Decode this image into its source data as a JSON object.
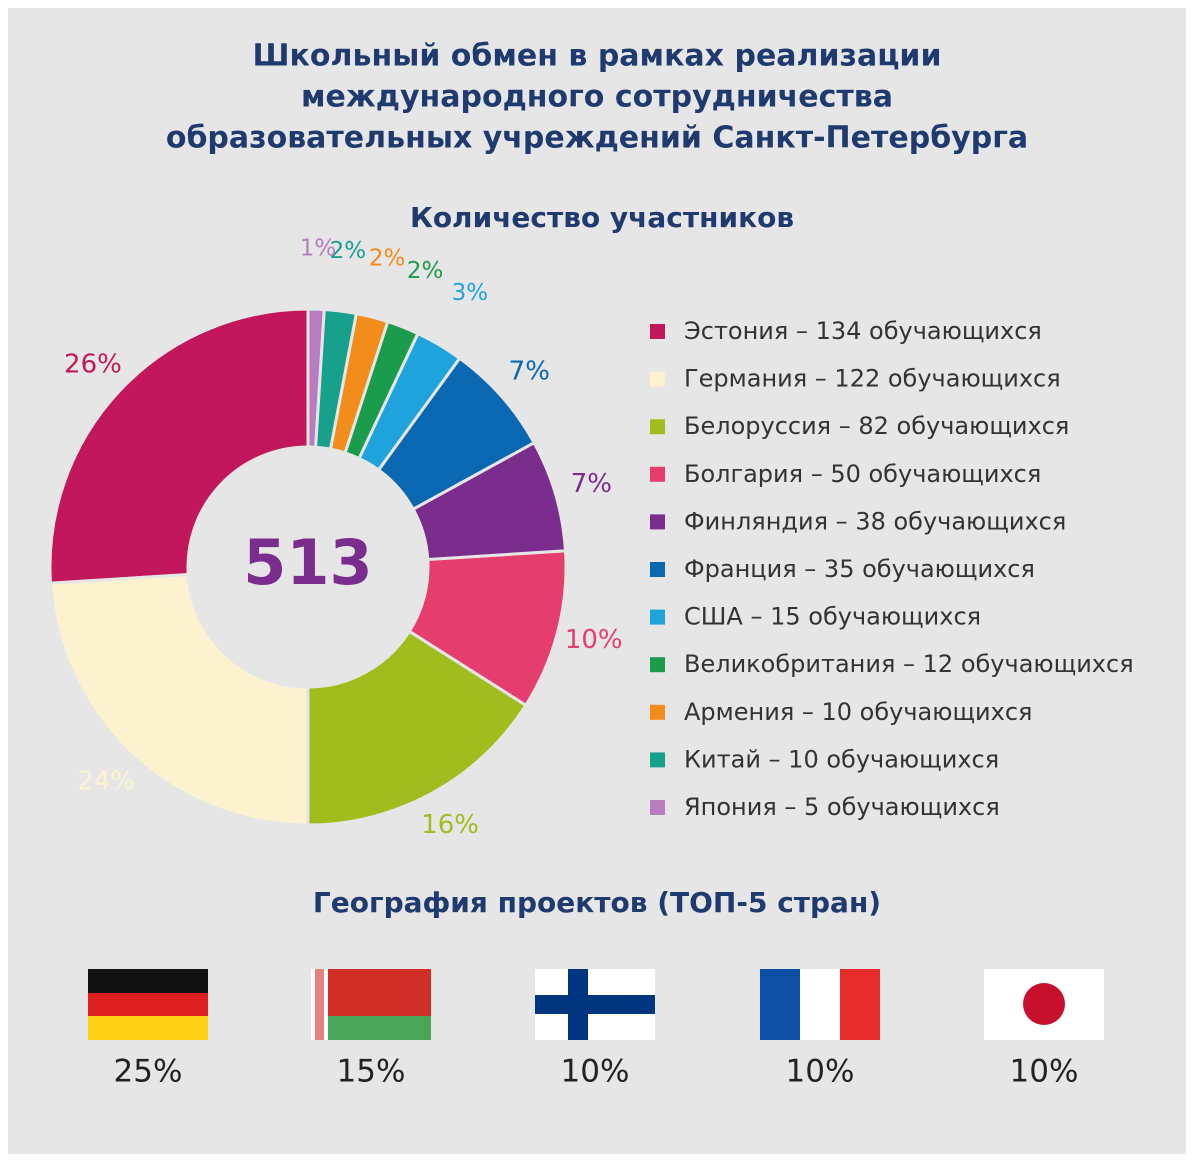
{
  "title_lines": [
    "Школьный обмен в рамках реализации",
    "международного сотрудничества",
    "образовательных учреждений Санкт-Петербурга"
  ],
  "chart_data": {
    "type": "donut",
    "title": "Количество участников",
    "center_label": 513,
    "categories": [
      "Эстония – 134 обучающихся",
      "Германия – 122 обучающихся",
      "Белоруссия – 82 обучающихся",
      "Болгария – 50 обучающихся",
      "Финляндия – 38 обучающихся",
      "Франция – 35 обучающихся",
      "США – 15 обучающихся",
      "Великобритания – 12 обучающихся",
      "Армения – 10 обучающихся",
      "Китай – 10 обучающихся",
      "Япония – 5 обучающихся"
    ],
    "values": [
      26,
      24,
      16,
      10,
      7,
      7,
      3,
      2,
      2,
      2,
      1
    ],
    "value_labels": [
      "26%",
      "24%",
      "16%",
      "10%",
      "7%",
      "7%",
      "3%",
      "2%",
      "2%",
      "2%",
      "1%"
    ],
    "colors": [
      "#c2185b",
      "#fcf2cf",
      "#a0bd1e",
      "#e63d6f",
      "#7b2d8e",
      "#0a67b2",
      "#1ea3dc",
      "#1b9b4c",
      "#f28c1a",
      "#17a08c",
      "#b97cbf"
    ]
  },
  "geography": {
    "title": "География проектов (ТОП-5 стран)",
    "labels": [
      "25%",
      "15%",
      "10%",
      "10%",
      "10%"
    ]
  }
}
